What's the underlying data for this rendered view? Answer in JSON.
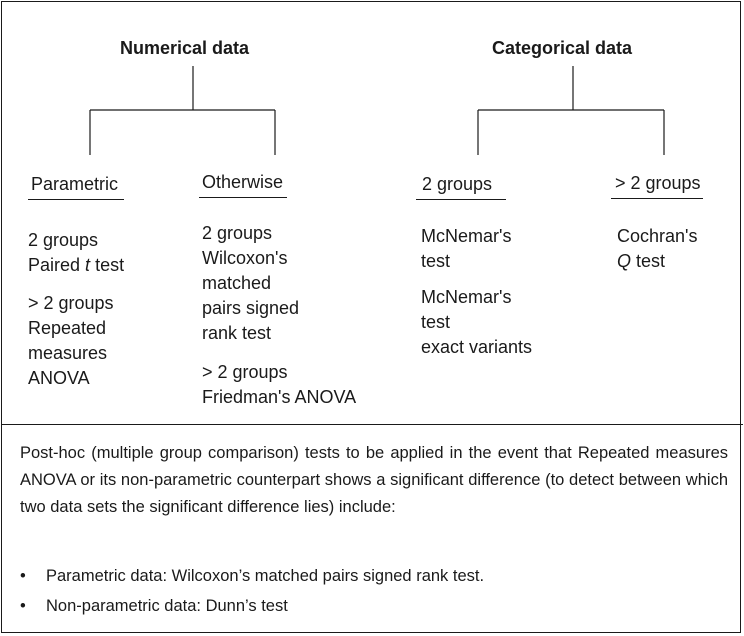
{
  "numerical": {
    "title": "Numerical data",
    "parametric": {
      "heading": "Parametric",
      "lines_a": [
        "2 groups"
      ],
      "paired_prefix": "Paired ",
      "paired_italic": "t",
      "paired_suffix": " test",
      "lines_b": [
        "> 2 groups",
        "Repeated",
        "measures",
        "ANOVA"
      ]
    },
    "otherwise": {
      "heading": "Otherwise",
      "lines_a": [
        "2 groups",
        "Wilcoxon's",
        "matched",
        "pairs signed",
        "rank test"
      ],
      "lines_b": [
        "> 2 groups",
        "Friedman's ANOVA"
      ]
    }
  },
  "categorical": {
    "title": "Categorical data",
    "two_groups": {
      "heading": "2 groups",
      "lines_a": [
        "McNemar's",
        "test"
      ],
      "lines_b": [
        "McNemar's",
        "test",
        "exact variants"
      ]
    },
    "more_groups": {
      "heading": "> 2 groups",
      "line1": "Cochran's",
      "q_italic": "Q",
      "q_suffix": " test"
    }
  },
  "note": {
    "text": "Post-hoc (multiple group comparison) tests to be applied in the event that Repeated measures ANOVA or its non-parametric counterpart shows a significant difference (to detect between which two data sets the significant difference lies) include:",
    "bullets": [
      "Parametric data: Wilcoxon’s matched pairs signed rank test.",
      "Non-parametric data: Dunn’s test"
    ]
  }
}
